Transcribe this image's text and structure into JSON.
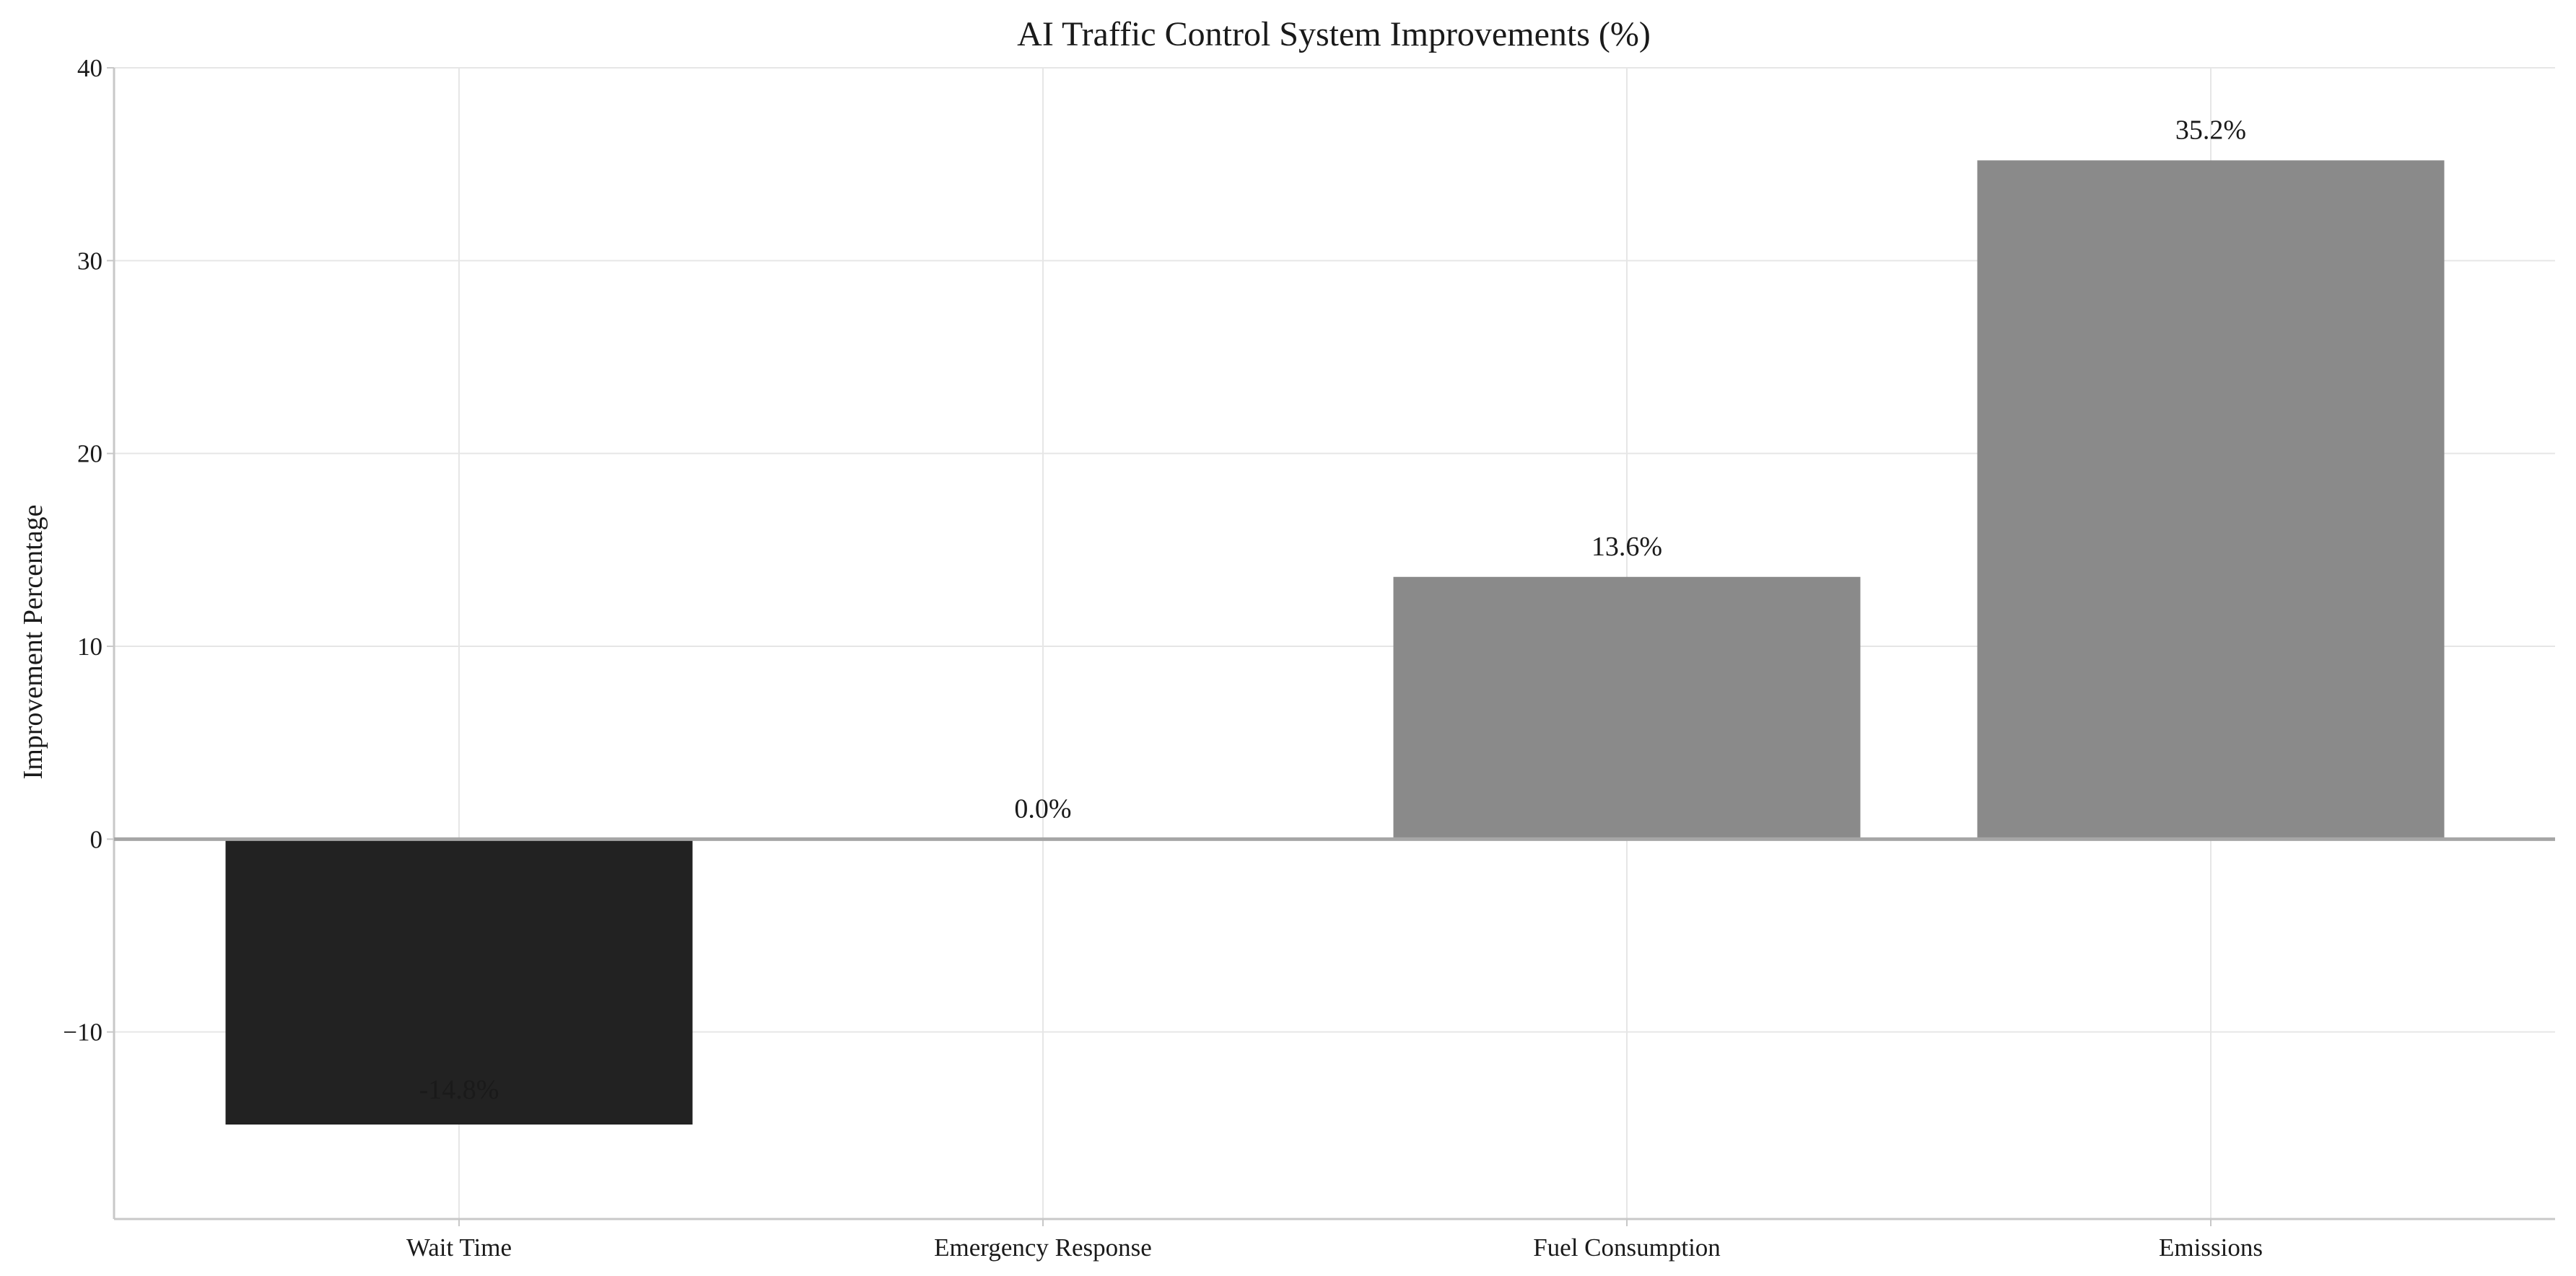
{
  "chart_data": {
    "type": "bar",
    "title": "AI Traffic Control System Improvements (%)",
    "xlabel": "",
    "ylabel": "Improvement Percentage",
    "categories": [
      "Wait Time",
      "Emergency Response",
      "Fuel Consumption",
      "Emissions"
    ],
    "values": [
      -14.8,
      0.0,
      13.6,
      35.2
    ],
    "data_labels": [
      "-14.8%",
      "0.0%",
      "13.6%",
      "35.2%"
    ],
    "bar_colors": [
      "#222222",
      "#8a8a8a",
      "#8a8a8a",
      "#8a8a8a"
    ],
    "ylim": [
      -19.7,
      40
    ],
    "yticks": [
      -10,
      0,
      10,
      20,
      30,
      40
    ],
    "ytick_labels": [
      "−10",
      "0",
      "10",
      "20",
      "30",
      "40"
    ],
    "grid": true,
    "legend": "none"
  }
}
